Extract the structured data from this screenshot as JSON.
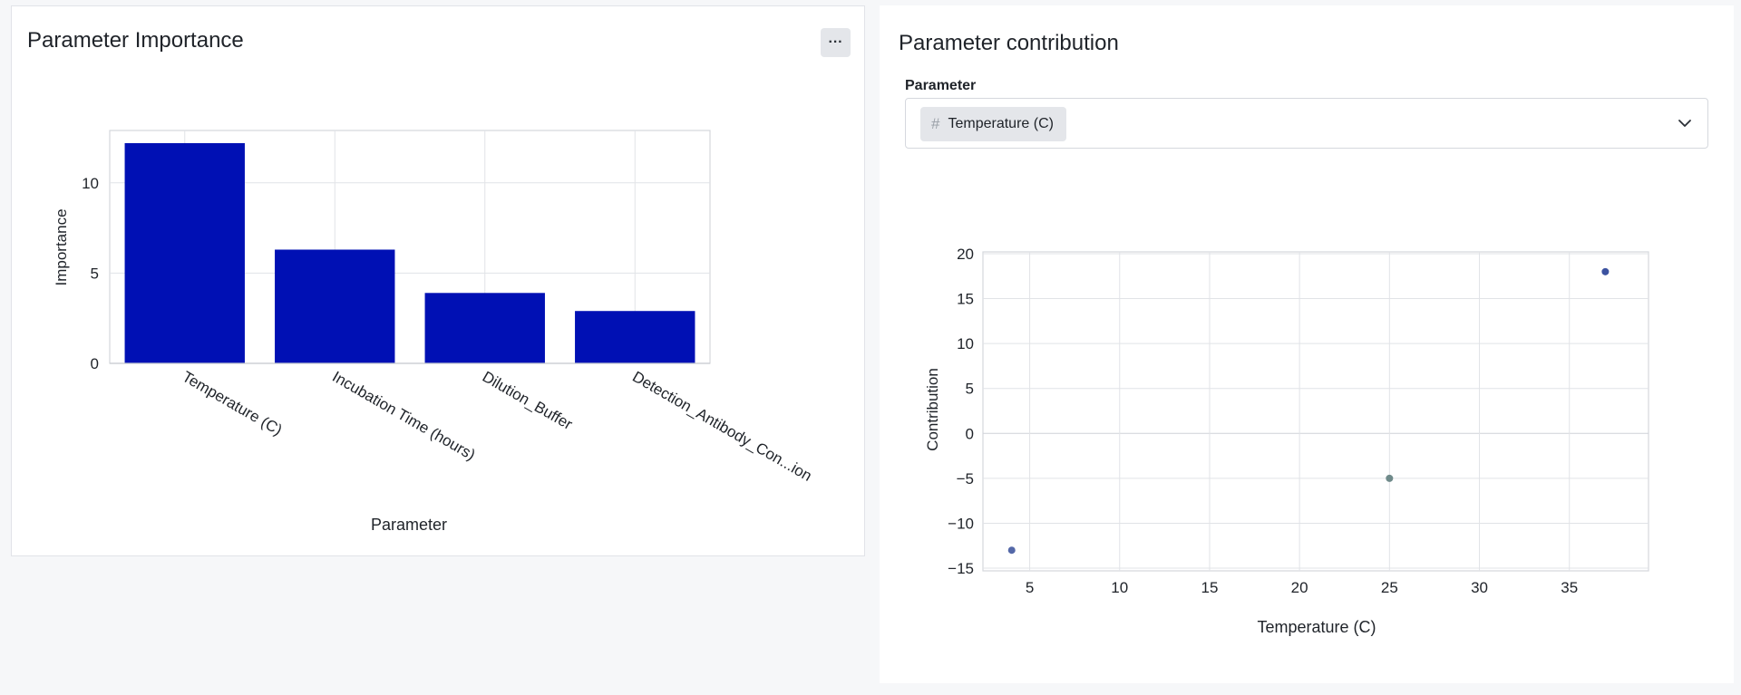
{
  "importance_panel": {
    "title": "Parameter Importance",
    "more_label": "···"
  },
  "contribution_panel": {
    "title": "Parameter contribution",
    "field_label": "Parameter",
    "selected_value": "Temperature (C)",
    "chip_icon": "hash-icon",
    "dropdown_icon": "chevron-down-icon"
  },
  "chart_data": [
    {
      "type": "bar",
      "title": "",
      "xlabel": "Parameter",
      "ylabel": "Importance",
      "categories": [
        "Temperature (C)",
        "Incubation Time (hours)",
        "Dilution_Buffer",
        "Detection_Antibody_Con...ion"
      ],
      "values": [
        12.2,
        6.3,
        3.9,
        2.9
      ],
      "ylim": [
        0,
        12.9
      ],
      "yticks": [
        0,
        5,
        10
      ],
      "grid": true,
      "bar_color": "#0010b4"
    },
    {
      "type": "scatter",
      "title": "",
      "xlabel": "Temperature (C)",
      "ylabel": "Contribution",
      "points": [
        {
          "x": 4,
          "y": -13,
          "color": "#5468a8"
        },
        {
          "x": 25,
          "y": -5,
          "color": "#6f8a8a"
        },
        {
          "x": 37,
          "y": 18,
          "color": "#3c52a0"
        }
      ],
      "xlim": [
        2.4,
        39.4
      ],
      "ylim": [
        -15.3,
        20.2
      ],
      "xticks": [
        5,
        10,
        15,
        20,
        25,
        30,
        35
      ],
      "yticks": [
        -15,
        -10,
        -5,
        0,
        5,
        10,
        15,
        20
      ],
      "grid": true
    }
  ]
}
